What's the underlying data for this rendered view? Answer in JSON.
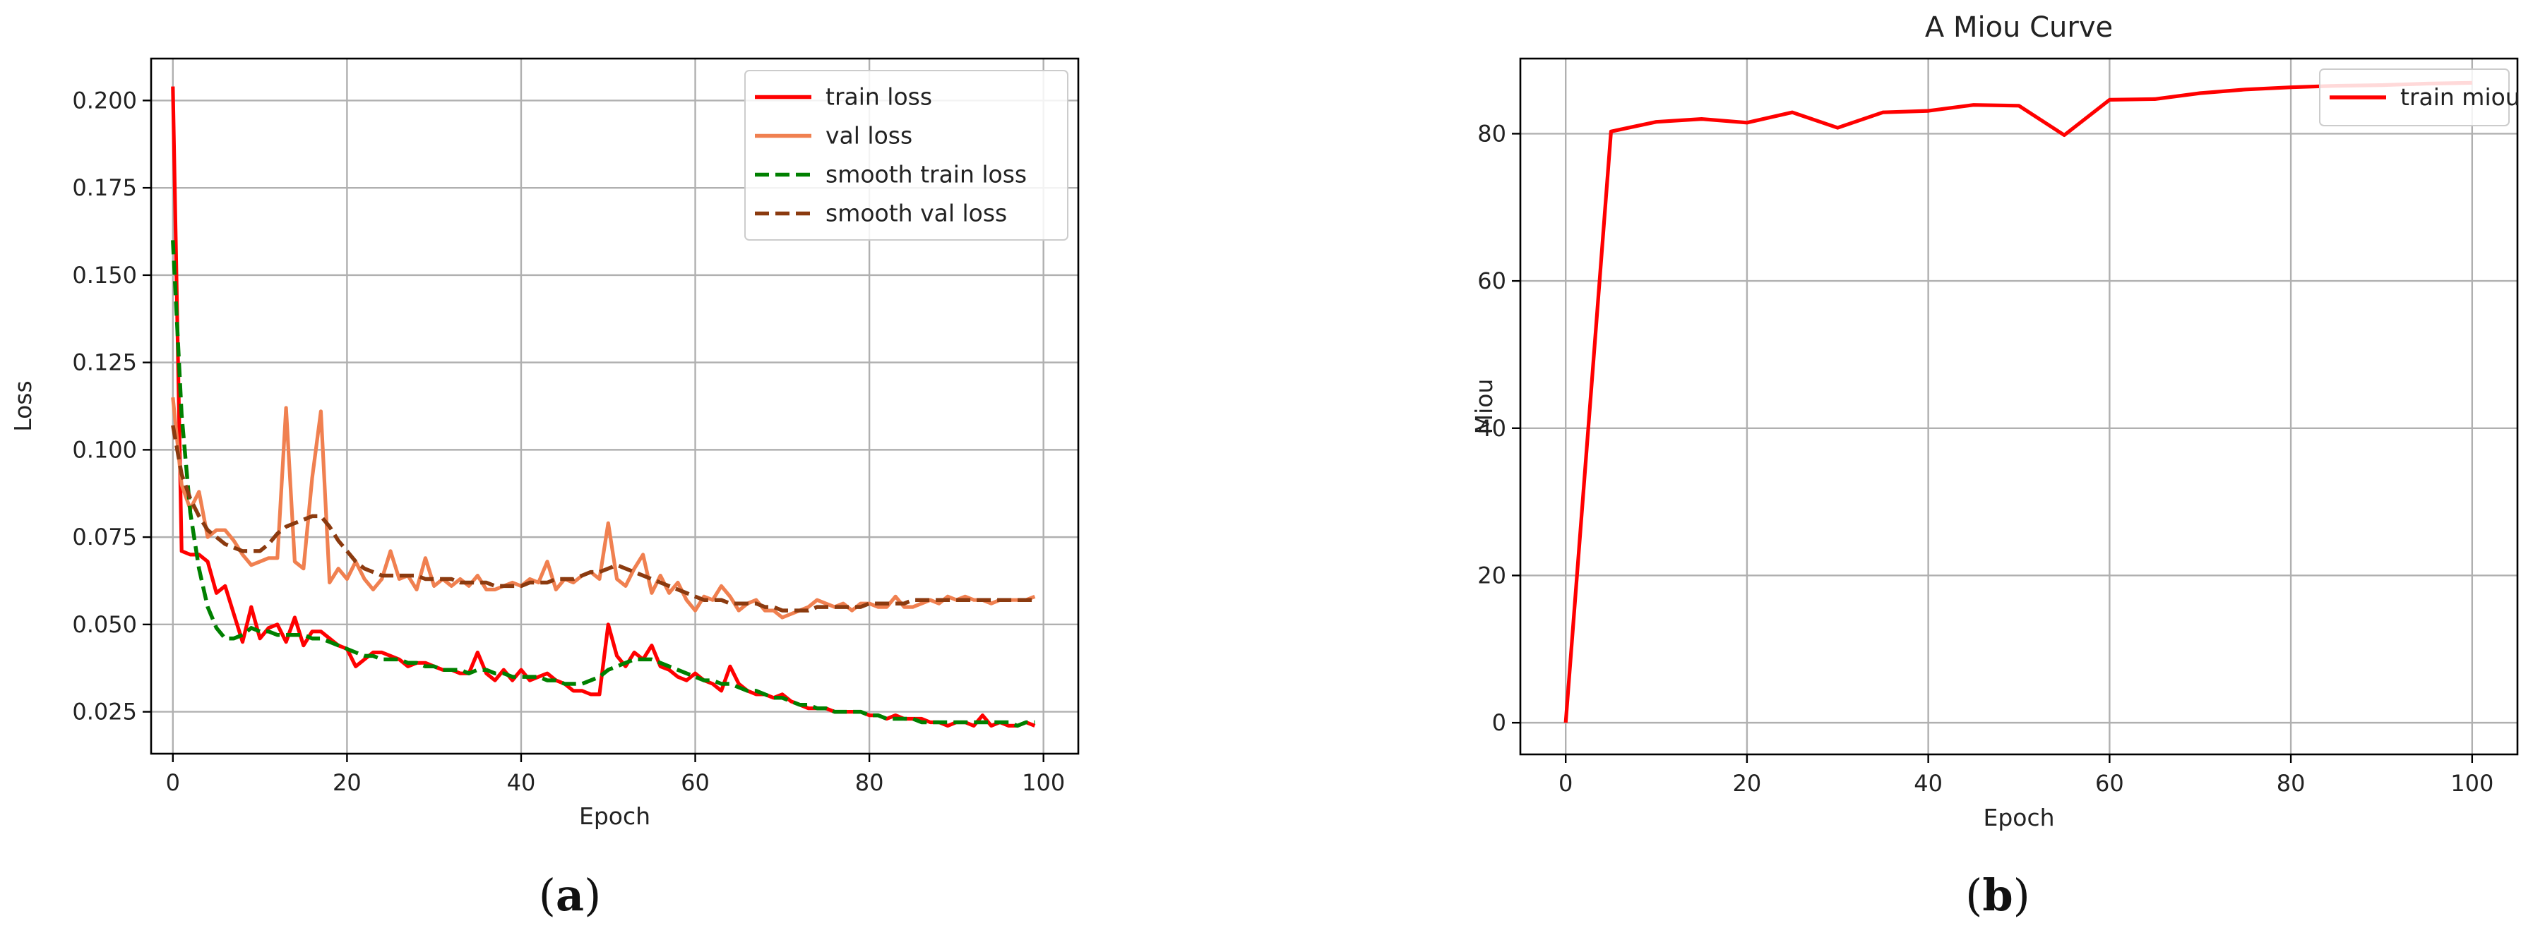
{
  "chart_data": [
    {
      "type": "line",
      "caption_letter": "a",
      "title": "",
      "xlabel": "Epoch",
      "ylabel": "Loss",
      "xlim": [
        -2.5,
        104
      ],
      "ylim": [
        0.013,
        0.212
      ],
      "xticks": [
        0,
        20,
        40,
        60,
        80,
        100
      ],
      "yticks": [
        0.025,
        0.05,
        0.075,
        0.1,
        0.125,
        0.15,
        0.175,
        0.2
      ],
      "ytick_labels": [
        "0.025",
        "0.050",
        "0.075",
        "0.100",
        "0.125",
        "0.150",
        "0.175",
        "0.200"
      ],
      "grid": true,
      "legend_position": "top-right",
      "series": [
        {
          "name": "train loss",
          "color": "#ff0000",
          "style": "solid",
          "x": [
            0,
            1,
            2,
            3,
            4,
            5,
            6,
            7,
            8,
            9,
            10,
            11,
            12,
            13,
            14,
            15,
            16,
            17,
            18,
            19,
            20,
            21,
            22,
            23,
            24,
            25,
            26,
            27,
            28,
            29,
            30,
            31,
            32,
            33,
            34,
            35,
            36,
            37,
            38,
            39,
            40,
            41,
            42,
            43,
            44,
            45,
            46,
            47,
            48,
            49,
            50,
            51,
            52,
            53,
            54,
            55,
            56,
            57,
            58,
            59,
            60,
            61,
            62,
            63,
            64,
            65,
            66,
            67,
            68,
            69,
            70,
            71,
            72,
            73,
            74,
            75,
            76,
            77,
            78,
            79,
            80,
            81,
            82,
            83,
            84,
            85,
            86,
            87,
            88,
            89,
            90,
            91,
            92,
            93,
            94,
            95,
            96,
            97,
            98,
            99
          ],
          "y": [
            0.204,
            0.071,
            0.07,
            0.07,
            0.068,
            0.059,
            0.061,
            0.053,
            0.045,
            0.055,
            0.046,
            0.049,
            0.05,
            0.045,
            0.052,
            0.044,
            0.048,
            0.048,
            0.046,
            0.044,
            0.043,
            0.038,
            0.04,
            0.042,
            0.042,
            0.041,
            0.04,
            0.038,
            0.039,
            0.039,
            0.038,
            0.037,
            0.037,
            0.036,
            0.036,
            0.042,
            0.036,
            0.034,
            0.037,
            0.034,
            0.037,
            0.034,
            0.035,
            0.036,
            0.034,
            0.033,
            0.031,
            0.031,
            0.03,
            0.03,
            0.05,
            0.041,
            0.038,
            0.042,
            0.04,
            0.044,
            0.038,
            0.037,
            0.035,
            0.034,
            0.036,
            0.034,
            0.033,
            0.031,
            0.038,
            0.033,
            0.031,
            0.03,
            0.03,
            0.029,
            0.03,
            0.028,
            0.027,
            0.026,
            0.026,
            0.026,
            0.025,
            0.025,
            0.025,
            0.025,
            0.024,
            0.024,
            0.023,
            0.024,
            0.023,
            0.023,
            0.023,
            0.022,
            0.022,
            0.021,
            0.022,
            0.022,
            0.021,
            0.024,
            0.021,
            0.022,
            0.021,
            0.021,
            0.022,
            0.021
          ]
        },
        {
          "name": "val loss",
          "color": "#f08050",
          "style": "solid",
          "x": [
            0,
            1,
            2,
            3,
            4,
            5,
            6,
            7,
            8,
            9,
            10,
            11,
            12,
            13,
            14,
            15,
            16,
            17,
            18,
            19,
            20,
            21,
            22,
            23,
            24,
            25,
            26,
            27,
            28,
            29,
            30,
            31,
            32,
            33,
            34,
            35,
            36,
            37,
            38,
            39,
            40,
            41,
            42,
            43,
            44,
            45,
            46,
            47,
            48,
            49,
            50,
            51,
            52,
            53,
            54,
            55,
            56,
            57,
            58,
            59,
            60,
            61,
            62,
            63,
            64,
            65,
            66,
            67,
            68,
            69,
            70,
            71,
            72,
            73,
            74,
            75,
            76,
            77,
            78,
            79,
            80,
            81,
            82,
            83,
            84,
            85,
            86,
            87,
            88,
            89,
            90,
            91,
            92,
            93,
            94,
            95,
            96,
            97,
            98,
            99
          ],
          "y": [
            0.115,
            0.09,
            0.083,
            0.088,
            0.075,
            0.077,
            0.077,
            0.074,
            0.07,
            0.067,
            0.068,
            0.069,
            0.069,
            0.112,
            0.068,
            0.066,
            0.092,
            0.111,
            0.062,
            0.066,
            0.063,
            0.068,
            0.063,
            0.06,
            0.063,
            0.071,
            0.063,
            0.064,
            0.06,
            0.069,
            0.061,
            0.063,
            0.061,
            0.063,
            0.061,
            0.064,
            0.06,
            0.06,
            0.061,
            0.062,
            0.061,
            0.063,
            0.062,
            0.068,
            0.06,
            0.063,
            0.062,
            0.064,
            0.065,
            0.063,
            0.079,
            0.063,
            0.061,
            0.066,
            0.07,
            0.059,
            0.064,
            0.059,
            0.062,
            0.057,
            0.054,
            0.058,
            0.057,
            0.061,
            0.058,
            0.054,
            0.056,
            0.057,
            0.054,
            0.054,
            0.052,
            0.053,
            0.054,
            0.055,
            0.057,
            0.056,
            0.055,
            0.056,
            0.054,
            0.056,
            0.056,
            0.055,
            0.055,
            0.058,
            0.055,
            0.055,
            0.056,
            0.057,
            0.056,
            0.058,
            0.057,
            0.058,
            0.057,
            0.057,
            0.056,
            0.057,
            0.057,
            0.057,
            0.057,
            0.058
          ]
        },
        {
          "name": "smooth train loss",
          "color": "#008000",
          "style": "dashed",
          "x": [
            0,
            1,
            2,
            3,
            4,
            5,
            6,
            7,
            8,
            9,
            10,
            11,
            12,
            13,
            14,
            15,
            16,
            17,
            18,
            19,
            20,
            21,
            22,
            23,
            24,
            25,
            26,
            27,
            28,
            29,
            30,
            31,
            32,
            33,
            34,
            35,
            36,
            37,
            38,
            39,
            40,
            41,
            42,
            43,
            44,
            45,
            46,
            47,
            48,
            49,
            50,
            51,
            52,
            53,
            54,
            55,
            56,
            57,
            58,
            59,
            60,
            61,
            62,
            63,
            64,
            65,
            66,
            67,
            68,
            69,
            70,
            71,
            72,
            73,
            74,
            75,
            76,
            77,
            78,
            79,
            80,
            81,
            82,
            83,
            84,
            85,
            86,
            87,
            88,
            89,
            90,
            91,
            92,
            93,
            94,
            95,
            96,
            97,
            98,
            99
          ],
          "y": [
            0.16,
            0.11,
            0.082,
            0.066,
            0.055,
            0.049,
            0.046,
            0.046,
            0.047,
            0.049,
            0.048,
            0.048,
            0.047,
            0.047,
            0.047,
            0.047,
            0.046,
            0.046,
            0.045,
            0.044,
            0.043,
            0.042,
            0.041,
            0.041,
            0.04,
            0.04,
            0.04,
            0.039,
            0.039,
            0.038,
            0.038,
            0.037,
            0.037,
            0.037,
            0.036,
            0.037,
            0.037,
            0.036,
            0.036,
            0.035,
            0.035,
            0.035,
            0.035,
            0.034,
            0.034,
            0.033,
            0.033,
            0.033,
            0.034,
            0.035,
            0.037,
            0.038,
            0.039,
            0.04,
            0.04,
            0.04,
            0.039,
            0.038,
            0.037,
            0.036,
            0.035,
            0.034,
            0.034,
            0.033,
            0.033,
            0.032,
            0.031,
            0.031,
            0.03,
            0.029,
            0.029,
            0.028,
            0.027,
            0.027,
            0.026,
            0.026,
            0.025,
            0.025,
            0.025,
            0.025,
            0.024,
            0.024,
            0.023,
            0.023,
            0.023,
            0.023,
            0.022,
            0.022,
            0.022,
            0.022,
            0.022,
            0.022,
            0.022,
            0.022,
            0.022,
            0.022,
            0.022,
            0.021,
            0.022,
            0.022
          ]
        },
        {
          "name": "smooth val loss",
          "color": "#8b3a0f",
          "style": "dashed",
          "x": [
            0,
            1,
            2,
            3,
            4,
            5,
            6,
            7,
            8,
            9,
            10,
            11,
            12,
            13,
            14,
            15,
            16,
            17,
            18,
            19,
            20,
            21,
            22,
            23,
            24,
            25,
            26,
            27,
            28,
            29,
            30,
            31,
            32,
            33,
            34,
            35,
            36,
            37,
            38,
            39,
            40,
            41,
            42,
            43,
            44,
            45,
            46,
            47,
            48,
            49,
            50,
            51,
            52,
            53,
            54,
            55,
            56,
            57,
            58,
            59,
            60,
            61,
            62,
            63,
            64,
            65,
            66,
            67,
            68,
            69,
            70,
            71,
            72,
            73,
            74,
            75,
            76,
            77,
            78,
            79,
            80,
            81,
            82,
            83,
            84,
            85,
            86,
            87,
            88,
            89,
            90,
            91,
            92,
            93,
            94,
            95,
            96,
            97,
            98,
            99
          ],
          "y": [
            0.107,
            0.093,
            0.086,
            0.081,
            0.077,
            0.075,
            0.073,
            0.072,
            0.071,
            0.071,
            0.071,
            0.073,
            0.076,
            0.078,
            0.079,
            0.08,
            0.081,
            0.081,
            0.078,
            0.074,
            0.071,
            0.068,
            0.066,
            0.065,
            0.064,
            0.064,
            0.064,
            0.064,
            0.064,
            0.063,
            0.063,
            0.063,
            0.063,
            0.062,
            0.062,
            0.062,
            0.062,
            0.061,
            0.061,
            0.061,
            0.061,
            0.062,
            0.062,
            0.062,
            0.063,
            0.063,
            0.063,
            0.064,
            0.065,
            0.065,
            0.066,
            0.067,
            0.066,
            0.065,
            0.064,
            0.063,
            0.062,
            0.061,
            0.06,
            0.059,
            0.058,
            0.057,
            0.057,
            0.057,
            0.056,
            0.056,
            0.056,
            0.056,
            0.055,
            0.055,
            0.054,
            0.054,
            0.054,
            0.054,
            0.055,
            0.055,
            0.055,
            0.055,
            0.055,
            0.055,
            0.056,
            0.056,
            0.056,
            0.056,
            0.056,
            0.057,
            0.057,
            0.057,
            0.057,
            0.057,
            0.057,
            0.057,
            0.057,
            0.057,
            0.057,
            0.057,
            0.057,
            0.057,
            0.057,
            0.057
          ]
        }
      ]
    },
    {
      "type": "line",
      "caption_letter": "b",
      "title": "A Miou Curve",
      "xlabel": "Epoch",
      "ylabel": "Miou",
      "xlim": [
        -5,
        105
      ],
      "ylim": [
        -4.3,
        90.2
      ],
      "xticks": [
        0,
        20,
        40,
        60,
        80,
        100
      ],
      "yticks": [
        0,
        20,
        40,
        60,
        80
      ],
      "ytick_labels": [
        "0",
        "20",
        "40",
        "60",
        "80"
      ],
      "grid": true,
      "legend_position": "top-right",
      "series": [
        {
          "name": "train miou",
          "color": "#ff0000",
          "style": "solid",
          "x": [
            0,
            5,
            10,
            15,
            20,
            25,
            30,
            35,
            40,
            45,
            50,
            55,
            60,
            65,
            70,
            75,
            80,
            85,
            90,
            95,
            100
          ],
          "y": [
            0,
            80.3,
            81.6,
            82.0,
            81.5,
            82.9,
            80.8,
            82.9,
            83.1,
            83.9,
            83.8,
            79.8,
            84.6,
            84.7,
            85.5,
            86.0,
            86.3,
            86.5,
            86.6,
            86.8,
            86.9
          ]
        }
      ]
    }
  ]
}
